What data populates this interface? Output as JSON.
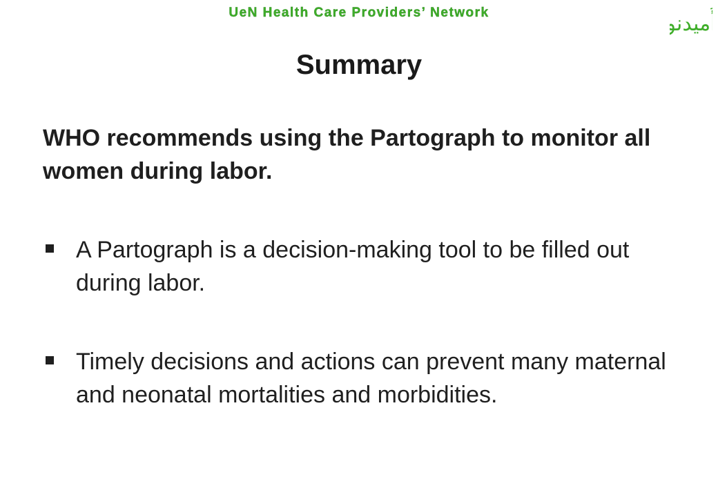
{
  "header": {
    "network_name": "UeN Health Care Providers’ Network",
    "logo_text": "أُميدنو",
    "logo_color": "#3fae2a"
  },
  "slide": {
    "title": "Summary",
    "intro": "WHO recommends using the Partograph to monitor all women during labor.",
    "bullets": [
      {
        "text": "A Partograph is a decision-making tool to be filled out during labor."
      },
      {
        "text": "Timely decisions and actions can prevent many maternal and neonatal mortalities and morbidities."
      }
    ]
  }
}
